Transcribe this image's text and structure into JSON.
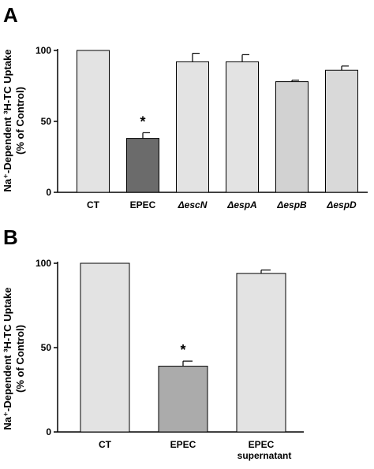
{
  "chart_data": [
    {
      "panel": "A",
      "type": "bar",
      "ylabel_line1": "Na⁺-Dependent ³H-TC Uptake",
      "ylabel_line2": "(% of Control)",
      "ylim": [
        0,
        100
      ],
      "yticks": [
        0,
        50,
        100
      ],
      "categories": [
        "CT",
        "EPEC",
        "ΔescN",
        "ΔespA",
        "ΔespB",
        "ΔespD"
      ],
      "italic_categories": [
        false,
        false,
        true,
        true,
        true,
        true
      ],
      "values": [
        100,
        38,
        92,
        92,
        78,
        86
      ],
      "errors": [
        0,
        4,
        6,
        5,
        1,
        3
      ],
      "colors": [
        "#e3e3e3",
        "#6b6b6b",
        "#e3e3e3",
        "#e3e3e3",
        "#d2d2d2",
        "#d9d9d9"
      ],
      "annotations": [
        "",
        "*",
        "",
        "",
        "",
        ""
      ]
    },
    {
      "panel": "B",
      "type": "bar",
      "ylabel_line1": "Na⁺-Dependent ³H-TC Uptake",
      "ylabel_line2": "(% of Control)",
      "ylim": [
        0,
        100
      ],
      "yticks": [
        0,
        50,
        100
      ],
      "categories": [
        "CT",
        "EPEC",
        "EPEC supernatant"
      ],
      "category_lines": [
        [
          "CT"
        ],
        [
          "EPEC"
        ],
        [
          "EPEC",
          "supernatant"
        ]
      ],
      "values": [
        100,
        39,
        94
      ],
      "errors": [
        0,
        3,
        2
      ],
      "colors": [
        "#e3e3e3",
        "#ababab",
        "#e3e3e3"
      ],
      "annotations": [
        "",
        "*",
        ""
      ]
    }
  ]
}
